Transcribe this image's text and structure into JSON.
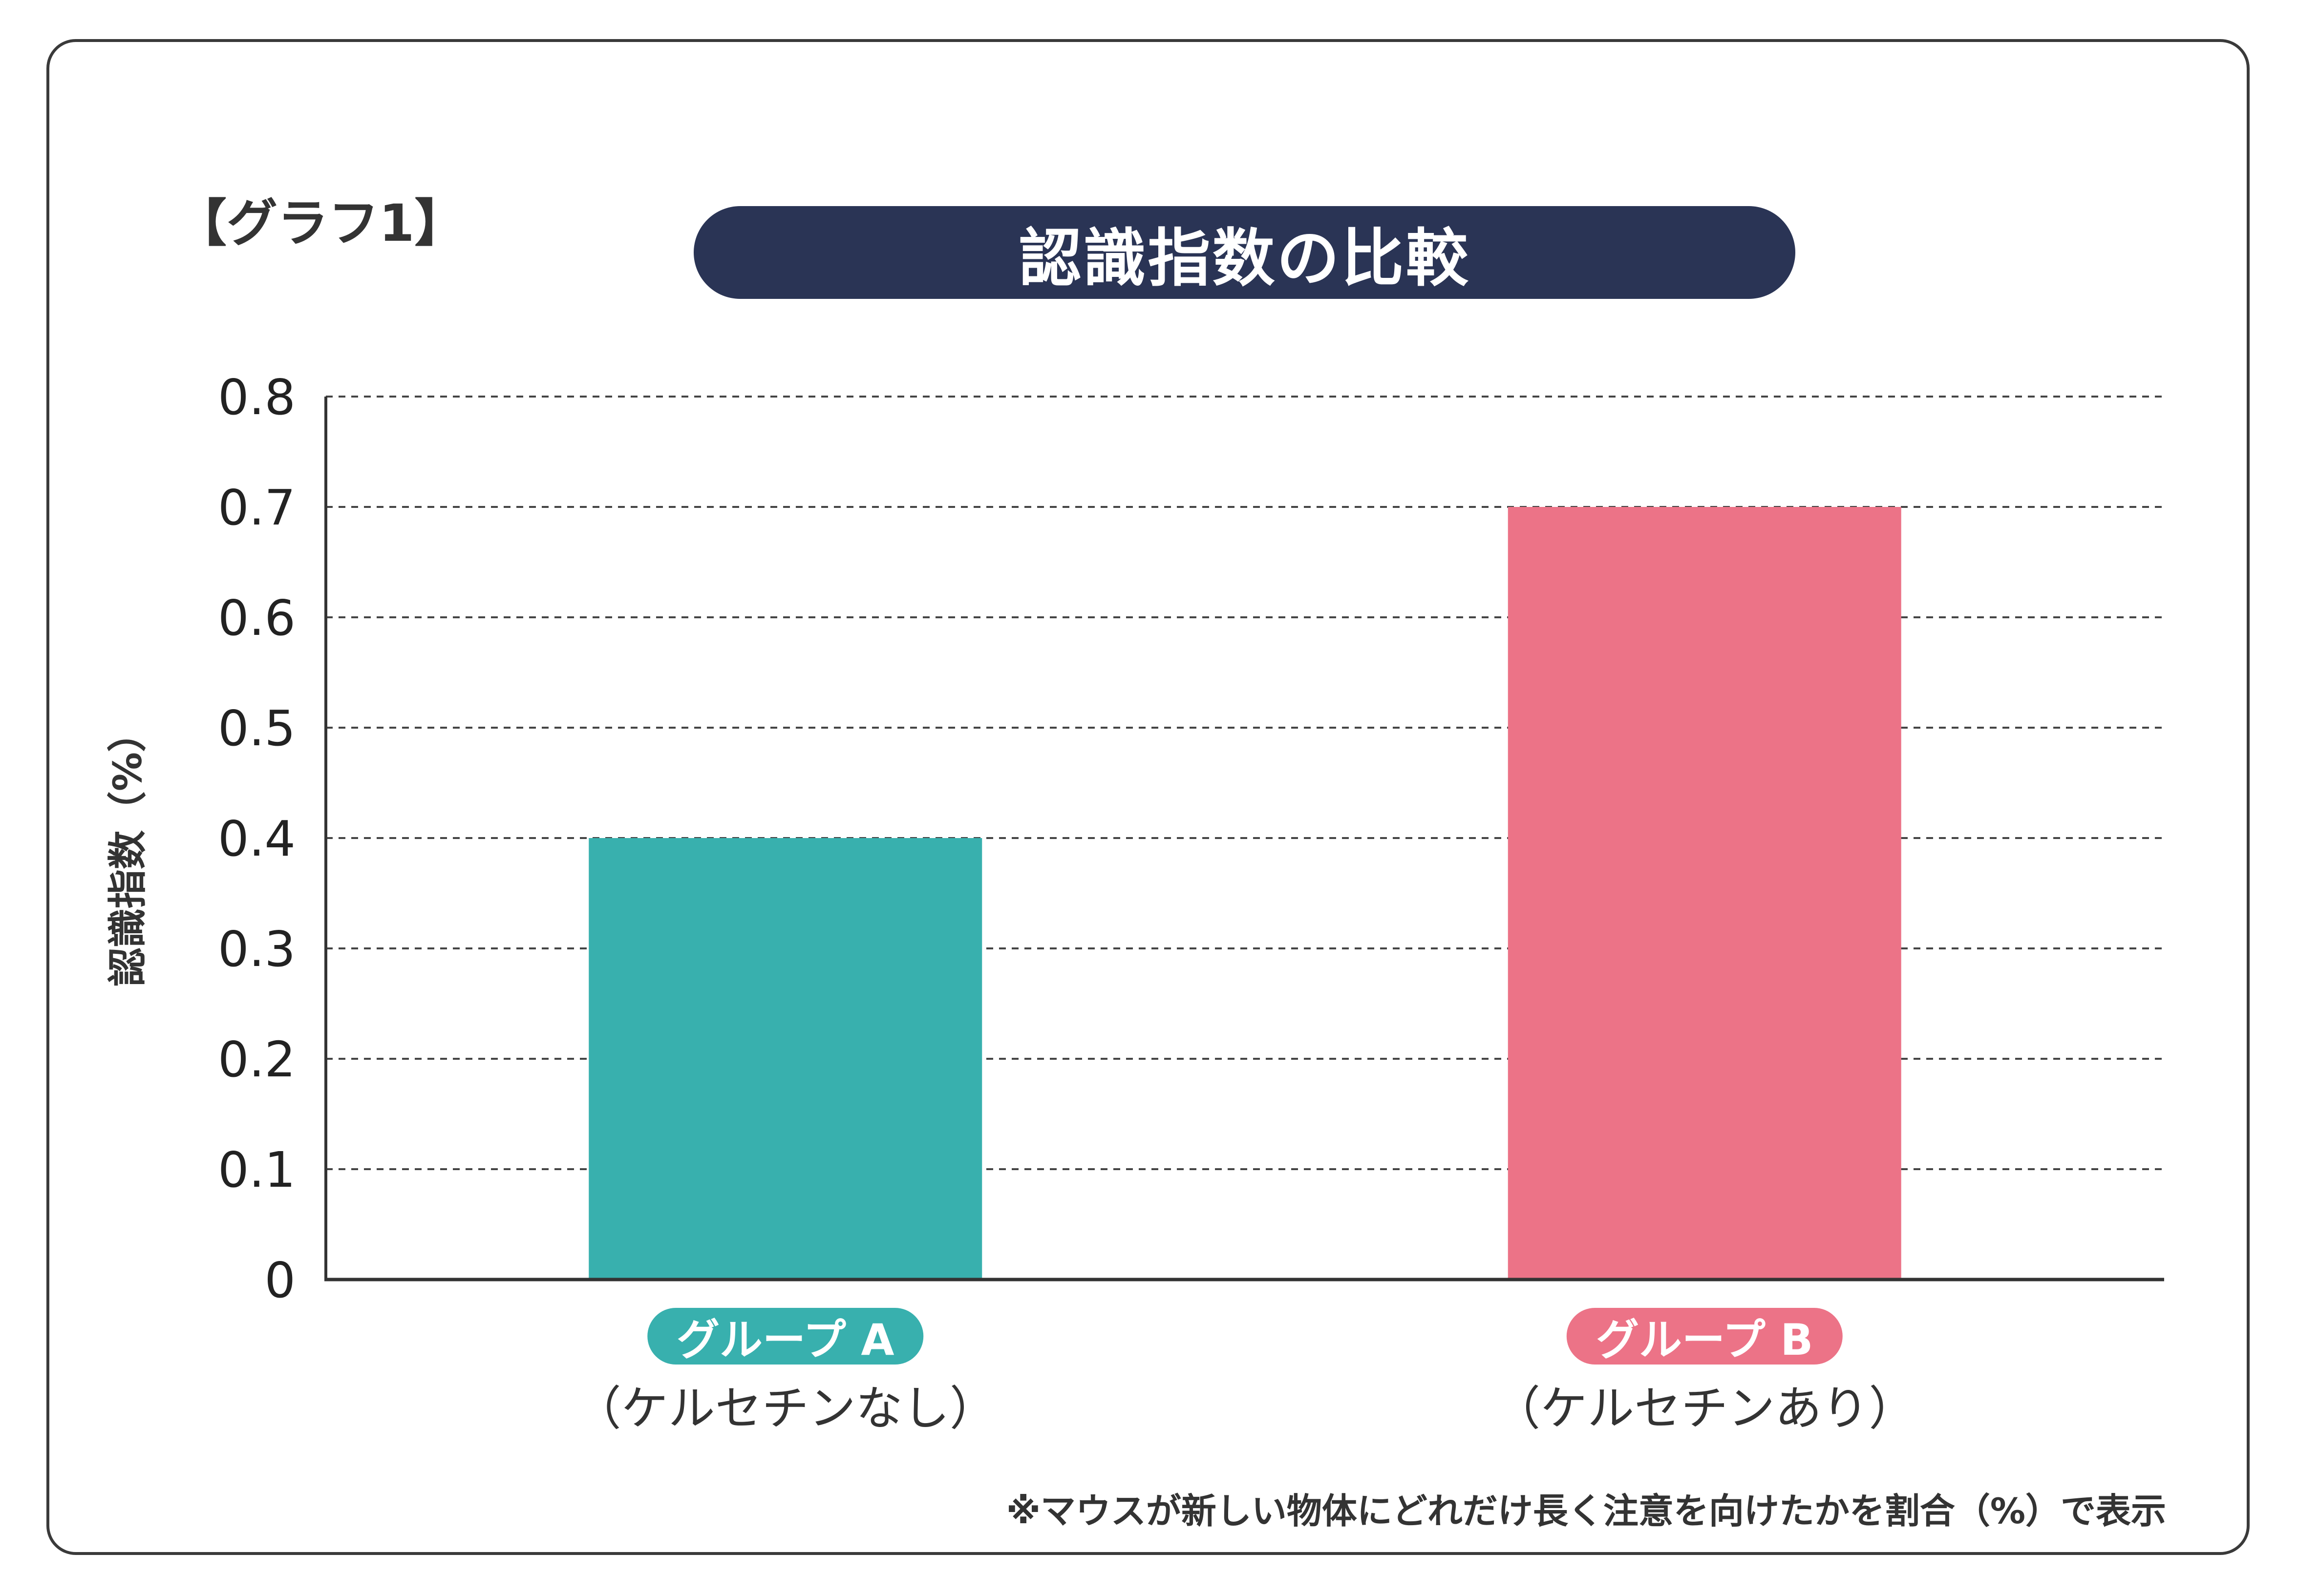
{
  "graph_tag": "【グラフ1】",
  "chart_data": {
    "type": "bar",
    "title": "認識指数の比較",
    "ylabel": "認識指数（%）",
    "xlabel": "",
    "ylim": [
      0,
      0.8
    ],
    "yticks": [
      "0",
      "0.1",
      "0.2",
      "0.3",
      "0.4",
      "0.5",
      "0.6",
      "0.7",
      "0.8"
    ],
    "grid": true,
    "categories": [
      {
        "label": "グループ A",
        "sublabel": "（ケルセチンなし）",
        "value": 0.4,
        "color": "#38b0ae"
      },
      {
        "label": "グループ B",
        "sublabel": "（ケルセチンあり）",
        "value": 0.7,
        "color": "#ec7387"
      }
    ]
  },
  "footnote": "※マウスが新しい物体にどれだけ長く注意を向けたかを割合（%）で表示",
  "colors": {
    "title_bg": "#2a3455",
    "group_a": "#38b0ae",
    "group_b": "#ec7387",
    "axis": "#333333",
    "grid": "#444444"
  }
}
